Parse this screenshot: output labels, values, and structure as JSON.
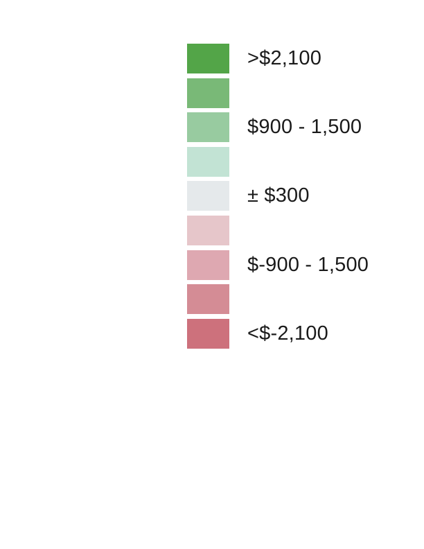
{
  "legend": {
    "items": [
      {
        "color": "#53a548",
        "label": ">$2,100"
      },
      {
        "color": "#79b977",
        "label": ""
      },
      {
        "color": "#98cba0",
        "label": "$900 - 1,500"
      },
      {
        "color": "#c2e3d4",
        "label": ""
      },
      {
        "color": "#e5e9eb",
        "label": "± $300"
      },
      {
        "color": "#e6c6ca",
        "label": ""
      },
      {
        "color": "#dea8b1",
        "label": "$-900 - 1,500"
      },
      {
        "color": "#d48c95",
        "label": ""
      },
      {
        "color": "#cd717c",
        "label": "<$-2,100"
      }
    ]
  }
}
